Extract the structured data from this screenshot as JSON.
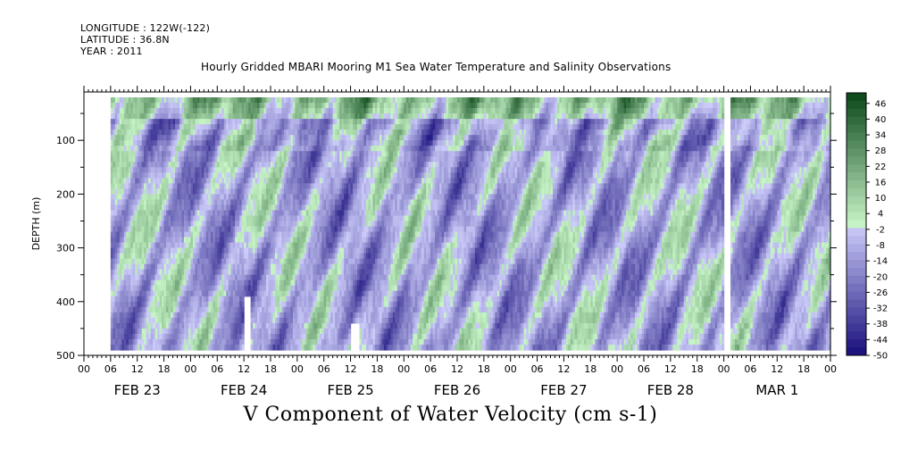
{
  "header": {
    "longitude": "LONGITUDE : 122W(-122)",
    "latitude": "LATITUDE : 36.8N",
    "year": "YEAR : 2011"
  },
  "chart_data": {
    "type": "heatmap",
    "title": "Hourly Gridded MBARI Mooring M1 Sea Water Temperature and Salinity Observations",
    "variable_label": "V Component of Water Velocity (cm s-1)",
    "ylabel": "DEPTH (m)",
    "y_ticks": [
      "100",
      "200",
      "300",
      "400",
      "500"
    ],
    "y_range": [
      10,
      500
    ],
    "y_inverted": true,
    "x_hour_ticks": [
      "00",
      "06",
      "12",
      "18",
      "00",
      "06",
      "12",
      "18",
      "00",
      "06",
      "12",
      "18",
      "00",
      "06",
      "12",
      "18",
      "00",
      "06",
      "12",
      "18",
      "00",
      "06",
      "12",
      "18",
      "00",
      "06",
      "12",
      "18",
      "00"
    ],
    "x_day_labels": [
      "FEB 23",
      "FEB 24",
      "FEB 25",
      "FEB 26",
      "FEB 27",
      "FEB 28",
      "MAR  1"
    ],
    "x_range_hours": [
      0,
      168
    ],
    "data_start_hour": 6,
    "data_depth_range": [
      20,
      490
    ],
    "colorbar": {
      "labels": [
        "46",
        "40",
        "34",
        "28",
        "22",
        "16",
        "10",
        "4",
        "-2",
        "-8",
        "-14",
        "-20",
        "-26",
        "-32",
        "-38",
        "-44",
        "-50"
      ],
      "min": -50,
      "max": 50,
      "step": 3
    }
  }
}
